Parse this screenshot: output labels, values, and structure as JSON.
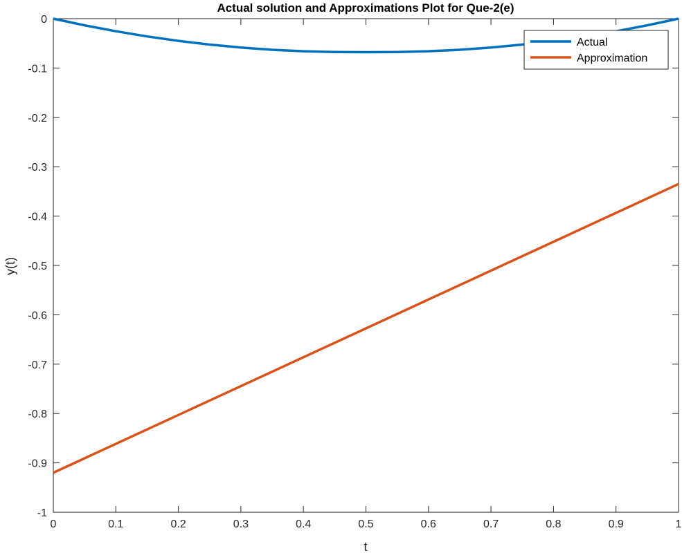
{
  "chart_data": {
    "type": "line",
    "title": "Actual solution and Approximations Plot for Que-2(e)",
    "xlabel": "t",
    "ylabel": "y(t)",
    "xlim": [
      0,
      1
    ],
    "ylim": [
      -1,
      0
    ],
    "xticks": [
      0,
      0.1,
      0.2,
      0.3,
      0.4,
      0.5,
      0.6,
      0.7,
      0.8,
      0.9,
      1
    ],
    "xtick_labels": [
      "0",
      "0.1",
      "0.2",
      "0.3",
      "0.4",
      "0.5",
      "0.6",
      "0.7",
      "0.8",
      "0.9",
      "1"
    ],
    "yticks": [
      0,
      -0.1,
      -0.2,
      -0.3,
      -0.4,
      -0.5,
      -0.6,
      -0.7,
      -0.8,
      -0.9,
      -1
    ],
    "ytick_labels": [
      "0",
      "-0.1",
      "-0.2",
      "-0.3",
      "-0.4",
      "-0.5",
      "-0.6",
      "-0.7",
      "-0.8",
      "-0.9",
      "-1"
    ],
    "grid": false,
    "box": true,
    "legend": "top-right",
    "series": [
      {
        "name": "Actual",
        "color": "#0072BD",
        "x": [
          0,
          0.05,
          0.1,
          0.15,
          0.2,
          0.25,
          0.3,
          0.35,
          0.4,
          0.45,
          0.5,
          0.55,
          0.6,
          0.65,
          0.7,
          0.75,
          0.8,
          0.85,
          0.9,
          0.95,
          1
        ],
        "y": [
          0,
          -0.0135,
          -0.0255,
          -0.036,
          -0.045,
          -0.0525,
          -0.0585,
          -0.063,
          -0.066,
          -0.0675,
          -0.068,
          -0.0675,
          -0.066,
          -0.063,
          -0.0585,
          -0.0525,
          -0.045,
          -0.036,
          -0.0255,
          -0.0135,
          0
        ]
      },
      {
        "name": "Approximation",
        "color": "#D95319",
        "x": [
          0,
          1
        ],
        "y": [
          -0.92,
          -0.335
        ]
      }
    ]
  }
}
